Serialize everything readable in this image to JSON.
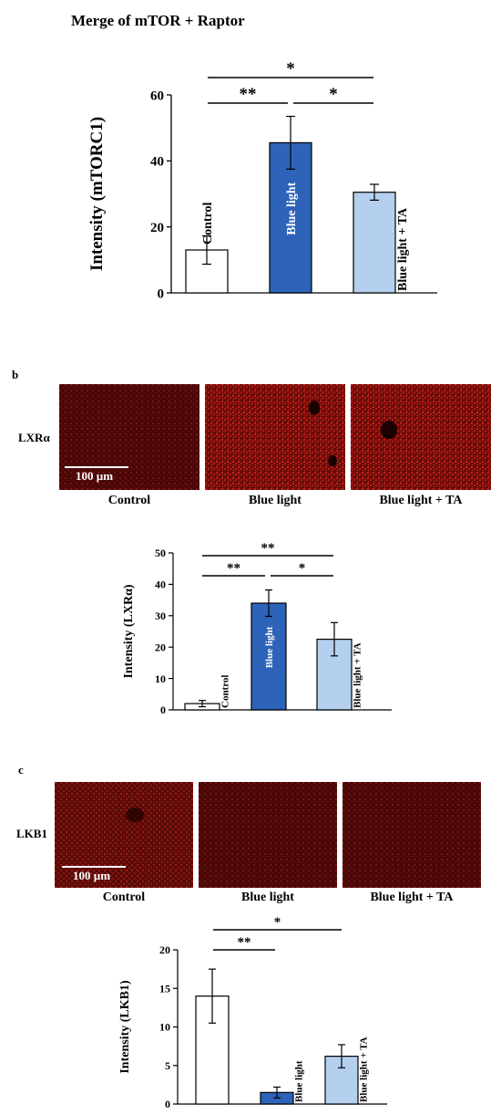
{
  "colors": {
    "control_bar": "#ffffff",
    "blue_light_bar": "#2d63b9",
    "blue_light_ta_bar": "#b4d0ee",
    "micrograph_base": "#4a0707",
    "micrograph_signal": "#c81a10"
  },
  "panel_a": {
    "title": "Merge of mTOR + Raptor"
  },
  "panel_b": {
    "letter": "b",
    "row_label": "LXRα",
    "scale_bar": "100 µm",
    "conditions": [
      "Control",
      "Blue light",
      "Blue light + TA"
    ]
  },
  "panel_c": {
    "letter": "c",
    "row_label": "LKB1",
    "scale_bar": "100 µm",
    "conditions": [
      "Control",
      "Blue light",
      "Blue light + TA"
    ]
  },
  "chart_data": [
    {
      "type": "bar",
      "title": "Merge of mTOR + Raptor",
      "ylabel": "Intensity (mTORC1)",
      "ylim": [
        0,
        60
      ],
      "yticks": [
        0,
        20,
        40,
        60
      ],
      "categories": [
        "Control",
        "Blue light",
        "Blue light + TA"
      ],
      "values": [
        13,
        45.5,
        30.5
      ],
      "errors": [
        4.3,
        8,
        2.4
      ],
      "significance": [
        {
          "from": 0,
          "to": 1,
          "label": "**"
        },
        {
          "from": 1,
          "to": 2,
          "label": "*"
        },
        {
          "from": 0,
          "to": 2,
          "label": "*"
        }
      ]
    },
    {
      "type": "bar",
      "ylabel": "Intensity (LXRα)",
      "ylim": [
        0,
        50
      ],
      "yticks": [
        0,
        10,
        20,
        30,
        40,
        50
      ],
      "categories": [
        "Control",
        "Blue light",
        "Blue light + TA"
      ],
      "values": [
        2,
        34,
        22.5
      ],
      "errors": [
        1,
        4.2,
        5.3
      ],
      "significance": [
        {
          "from": 0,
          "to": 1,
          "label": "**"
        },
        {
          "from": 1,
          "to": 2,
          "label": "*"
        },
        {
          "from": 0,
          "to": 2,
          "label": "**"
        }
      ]
    },
    {
      "type": "bar",
      "ylabel": "Intensity (LKB1)",
      "ylim": [
        0,
        20
      ],
      "yticks": [
        0,
        5,
        10,
        15,
        20
      ],
      "categories": [
        "Control",
        "Blue light",
        "Blue light + TA"
      ],
      "values": [
        14,
        1.5,
        6.2
      ],
      "errors": [
        3.5,
        0.7,
        1.5
      ],
      "significance": [
        {
          "from": 0,
          "to": 1,
          "label": "**"
        },
        {
          "from": 0,
          "to": 2,
          "label": "*"
        }
      ]
    }
  ]
}
